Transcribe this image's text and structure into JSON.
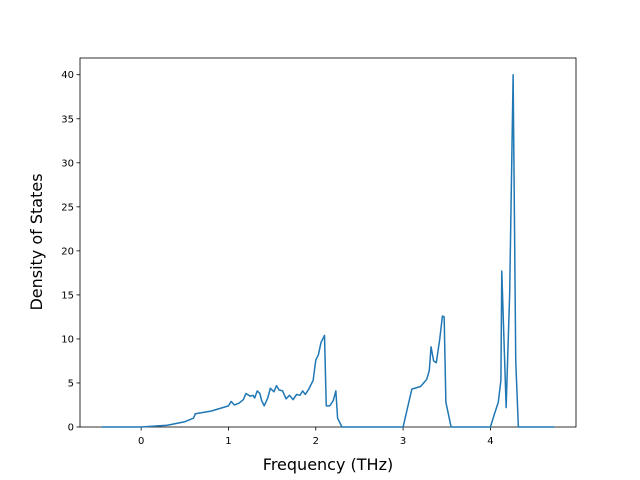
{
  "chart_data": {
    "type": "line",
    "xlabel": "Frequency (THz)",
    "ylabel": "Density of States",
    "x": [
      -0.45,
      0,
      0.3,
      0.5,
      0.6,
      0.62,
      0.8,
      1.0,
      1.03,
      1.07,
      1.12,
      1.17,
      1.2,
      1.25,
      1.28,
      1.3,
      1.33,
      1.36,
      1.38,
      1.41,
      1.45,
      1.48,
      1.52,
      1.55,
      1.58,
      1.62,
      1.66,
      1.7,
      1.74,
      1.78,
      1.82,
      1.85,
      1.88,
      1.92,
      1.97,
      2.0,
      2.03,
      2.06,
      2.1,
      2.12,
      2.16,
      2.2,
      2.23,
      2.25,
      2.3,
      3.0,
      3.1,
      3.2,
      3.27,
      3.3,
      3.32,
      3.35,
      3.38,
      3.42,
      3.45,
      3.47,
      3.49,
      3.55,
      4.0,
      4.05,
      4.09,
      4.12,
      4.13,
      4.18,
      4.22,
      4.26,
      4.29,
      4.32,
      4.73
    ],
    "series": [
      {
        "color": "#1f77b4",
        "values": [
          0,
          0,
          0.2,
          0.6,
          1.0,
          1.5,
          1.8,
          2.4,
          2.9,
          2.5,
          2.7,
          3.1,
          3.8,
          3.5,
          3.6,
          3.3,
          4.1,
          3.8,
          3.0,
          2.4,
          3.3,
          4.4,
          4.0,
          4.7,
          4.2,
          4.1,
          3.2,
          3.6,
          3.1,
          3.7,
          3.6,
          4.1,
          3.7,
          4.3,
          5.3,
          7.6,
          8.2,
          9.6,
          10.4,
          2.4,
          2.4,
          3.0,
          4.1,
          1.0,
          0,
          0,
          4.3,
          4.6,
          5.4,
          6.4,
          9.1,
          7.5,
          7.3,
          10.0,
          12.6,
          12.5,
          2.8,
          0,
          0,
          1.6,
          2.8,
          5.3,
          17.7,
          2.2,
          15.0,
          40.0,
          7.5,
          0,
          0
        ]
      }
    ],
    "xlim": [
      -0.7,
      4.98
    ],
    "ylim": [
      0,
      41.9
    ],
    "xticks": [
      0,
      1,
      2,
      3,
      4
    ],
    "yticks": [
      0,
      5,
      10,
      15,
      20,
      25,
      30,
      35,
      40
    ]
  }
}
